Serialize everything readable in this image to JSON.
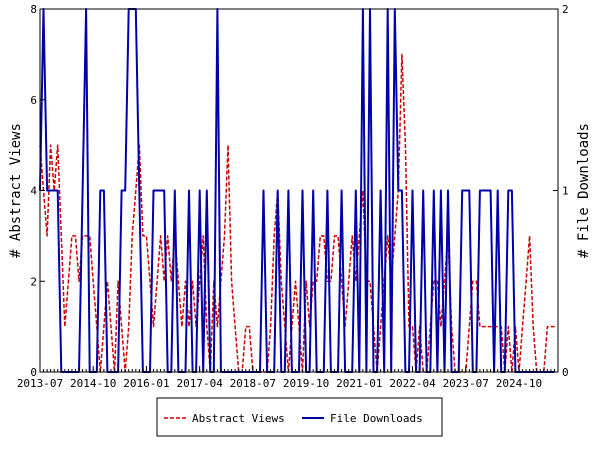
{
  "chart_data": {
    "type": "line",
    "ylabel_left": "# Abstract Views",
    "ylabel_right": "# File Downloads",
    "ylim_left": [
      0,
      8
    ],
    "ylim_right": [
      0,
      2
    ],
    "yticks_left": [
      "0",
      "2",
      "4",
      "6",
      "8"
    ],
    "yticks_right": [
      "0",
      "1",
      "2"
    ],
    "xlim": [
      "2013-07",
      "2025-09"
    ],
    "xtick_labels": [
      "2013-07",
      "2014-10",
      "2016-01",
      "2017-04",
      "2018-07",
      "2019-10",
      "2021-01",
      "2022-04",
      "2023-07",
      "2024-10"
    ],
    "legend_position": "bottom-center",
    "colors": {
      "abstract_views": "#cc0000",
      "file_downloads": "#0000aa"
    },
    "series": [
      {
        "name": "Abstract Views",
        "axis": "left",
        "style": "dashed",
        "points": [
          [
            "2013-07",
            5
          ],
          [
            "2013-08",
            4
          ],
          [
            "2013-09",
            3
          ],
          [
            "2013-10",
            5
          ],
          [
            "2013-11",
            4
          ],
          [
            "2013-12",
            5
          ],
          [
            "2014-01",
            3
          ],
          [
            "2014-02",
            1
          ],
          [
            "2014-03",
            2
          ],
          [
            "2014-04",
            3
          ],
          [
            "2014-05",
            3
          ],
          [
            "2014-06",
            2
          ],
          [
            "2014-07",
            3
          ],
          [
            "2014-08",
            3
          ],
          [
            "2014-09",
            3
          ],
          [
            "2014-10",
            2
          ],
          [
            "2014-11",
            1
          ],
          [
            "2014-12",
            0
          ],
          [
            "2015-01",
            1
          ],
          [
            "2015-02",
            2
          ],
          [
            "2015-03",
            1
          ],
          [
            "2015-04",
            0
          ],
          [
            "2015-05",
            2
          ],
          [
            "2015-06",
            1
          ],
          [
            "2015-07",
            0
          ],
          [
            "2015-08",
            1
          ],
          [
            "2015-09",
            3
          ],
          [
            "2015-10",
            4
          ],
          [
            "2015-11",
            5
          ],
          [
            "2015-12",
            3
          ],
          [
            "2016-01",
            3
          ],
          [
            "2016-02",
            2
          ],
          [
            "2016-03",
            1
          ],
          [
            "2016-04",
            2
          ],
          [
            "2016-05",
            3
          ],
          [
            "2016-06",
            2
          ],
          [
            "2016-07",
            3
          ],
          [
            "2016-08",
            2
          ],
          [
            "2016-09",
            3
          ],
          [
            "2016-10",
            2
          ],
          [
            "2016-11",
            1
          ],
          [
            "2016-12",
            2
          ],
          [
            "2017-01",
            1
          ],
          [
            "2017-02",
            2
          ],
          [
            "2017-03",
            1
          ],
          [
            "2017-04",
            2
          ],
          [
            "2017-05",
            3
          ],
          [
            "2017-06",
            1
          ],
          [
            "2017-07",
            0
          ],
          [
            "2017-08",
            2
          ],
          [
            "2017-09",
            1
          ],
          [
            "2017-10",
            2
          ],
          [
            "2017-11",
            3
          ],
          [
            "2017-12",
            5
          ],
          [
            "2018-01",
            2
          ],
          [
            "2018-02",
            1
          ],
          [
            "2018-03",
            0
          ],
          [
            "2018-04",
            0
          ],
          [
            "2018-05",
            1
          ],
          [
            "2018-06",
            1
          ],
          [
            "2018-07",
            0
          ],
          [
            "2018-08",
            0
          ],
          [
            "2018-09",
            0
          ],
          [
            "2018-10",
            0
          ],
          [
            "2018-11",
            0
          ],
          [
            "2018-12",
            1
          ],
          [
            "2019-01",
            3
          ],
          [
            "2019-02",
            4
          ],
          [
            "2019-03",
            2
          ],
          [
            "2019-04",
            1
          ],
          [
            "2019-05",
            0
          ],
          [
            "2019-06",
            1
          ],
          [
            "2019-07",
            2
          ],
          [
            "2019-08",
            1
          ],
          [
            "2019-09",
            0
          ],
          [
            "2019-10",
            2
          ],
          [
            "2019-11",
            1
          ],
          [
            "2019-12",
            2
          ],
          [
            "2020-01",
            2
          ],
          [
            "2020-02",
            3
          ],
          [
            "2020-03",
            3
          ],
          [
            "2020-04",
            2
          ],
          [
            "2020-05",
            2
          ],
          [
            "2020-06",
            3
          ],
          [
            "2020-07",
            3
          ],
          [
            "2020-08",
            2
          ],
          [
            "2020-09",
            1
          ],
          [
            "2020-10",
            2
          ],
          [
            "2020-11",
            3
          ],
          [
            "2020-12",
            2
          ],
          [
            "2021-01",
            3
          ],
          [
            "2021-02",
            4
          ],
          [
            "2021-03",
            2
          ],
          [
            "2021-04",
            2
          ],
          [
            "2021-05",
            1
          ],
          [
            "2021-06",
            0
          ],
          [
            "2021-07",
            1
          ],
          [
            "2021-08",
            2
          ],
          [
            "2021-09",
            3
          ],
          [
            "2021-10",
            2
          ],
          [
            "2021-11",
            3
          ],
          [
            "2021-12",
            4
          ],
          [
            "2022-01",
            7
          ],
          [
            "2022-02",
            5
          ],
          [
            "2022-03",
            1
          ],
          [
            "2022-04",
            1
          ],
          [
            "2022-05",
            0
          ],
          [
            "2022-06",
            1
          ],
          [
            "2022-07",
            0
          ],
          [
            "2022-08",
            0
          ],
          [
            "2022-09",
            1
          ],
          [
            "2022-10",
            2
          ],
          [
            "2022-11",
            2
          ],
          [
            "2022-12",
            1
          ],
          [
            "2023-01",
            2
          ],
          [
            "2023-02",
            3
          ],
          [
            "2023-03",
            1
          ],
          [
            "2023-04",
            0
          ],
          [
            "2023-05",
            0
          ],
          [
            "2023-06",
            0
          ],
          [
            "2023-07",
            0
          ],
          [
            "2023-08",
            1
          ],
          [
            "2023-09",
            2
          ],
          [
            "2023-10",
            2
          ],
          [
            "2023-11",
            1
          ],
          [
            "2023-12",
            1
          ],
          [
            "2024-01",
            1
          ],
          [
            "2024-02",
            1
          ],
          [
            "2024-03",
            1
          ],
          [
            "2024-04",
            1
          ],
          [
            "2024-05",
            1
          ],
          [
            "2024-06",
            0
          ],
          [
            "2024-07",
            1
          ],
          [
            "2024-08",
            0
          ],
          [
            "2024-09",
            1
          ],
          [
            "2024-10",
            0
          ],
          [
            "2024-11",
            1
          ],
          [
            "2024-12",
            2
          ],
          [
            "2025-01",
            3
          ],
          [
            "2025-02",
            1
          ],
          [
            "2025-03",
            0
          ],
          [
            "2025-04",
            0
          ],
          [
            "2025-05",
            0
          ],
          [
            "2025-06",
            1
          ],
          [
            "2025-07",
            1
          ],
          [
            "2025-08",
            1
          ]
        ]
      },
      {
        "name": "File Downloads",
        "axis": "right",
        "style": "solid",
        "points": [
          [
            "2013-07",
            1
          ],
          [
            "2013-08",
            2
          ],
          [
            "2013-09",
            1
          ],
          [
            "2013-10",
            1
          ],
          [
            "2013-11",
            1
          ],
          [
            "2013-12",
            1
          ],
          [
            "2014-01",
            0
          ],
          [
            "2014-02",
            0
          ],
          [
            "2014-03",
            0
          ],
          [
            "2014-04",
            0
          ],
          [
            "2014-05",
            0
          ],
          [
            "2014-06",
            0
          ],
          [
            "2014-07",
            1
          ],
          [
            "2014-08",
            2
          ],
          [
            "2014-09",
            0
          ],
          [
            "2014-10",
            0
          ],
          [
            "2014-11",
            0
          ],
          [
            "2014-12",
            1
          ],
          [
            "2015-01",
            1
          ],
          [
            "2015-02",
            0
          ],
          [
            "2015-03",
            0
          ],
          [
            "2015-04",
            0
          ],
          [
            "2015-05",
            0
          ],
          [
            "2015-06",
            1
          ],
          [
            "2015-07",
            1
          ],
          [
            "2015-08",
            2
          ],
          [
            "2015-09",
            2
          ],
          [
            "2015-10",
            2
          ],
          [
            "2015-11",
            1
          ],
          [
            "2015-12",
            0
          ],
          [
            "2016-01",
            0
          ],
          [
            "2016-02",
            0
          ],
          [
            "2016-03",
            1
          ],
          [
            "2016-04",
            1
          ],
          [
            "2016-05",
            1
          ],
          [
            "2016-06",
            1
          ],
          [
            "2016-07",
            0
          ],
          [
            "2016-08",
            0
          ],
          [
            "2016-09",
            1
          ],
          [
            "2016-10",
            0
          ],
          [
            "2016-11",
            0
          ],
          [
            "2016-12",
            0
          ],
          [
            "2017-01",
            1
          ],
          [
            "2017-02",
            0
          ],
          [
            "2017-03",
            0
          ],
          [
            "2017-04",
            1
          ],
          [
            "2017-05",
            0
          ],
          [
            "2017-06",
            1
          ],
          [
            "2017-07",
            0
          ],
          [
            "2017-08",
            0
          ],
          [
            "2017-09",
            2
          ],
          [
            "2017-10",
            0
          ],
          [
            "2017-11",
            0
          ],
          [
            "2017-12",
            0
          ],
          [
            "2018-01",
            0
          ],
          [
            "2018-02",
            0
          ],
          [
            "2018-03",
            0
          ],
          [
            "2018-04",
            0
          ],
          [
            "2018-05",
            0
          ],
          [
            "2018-06",
            0
          ],
          [
            "2018-07",
            0
          ],
          [
            "2018-08",
            0
          ],
          [
            "2018-09",
            0
          ],
          [
            "2018-10",
            1
          ],
          [
            "2018-11",
            0
          ],
          [
            "2018-12",
            0
          ],
          [
            "2019-01",
            0
          ],
          [
            "2019-02",
            1
          ],
          [
            "2019-03",
            0
          ],
          [
            "2019-04",
            0
          ],
          [
            "2019-05",
            1
          ],
          [
            "2019-06",
            0
          ],
          [
            "2019-07",
            0
          ],
          [
            "2019-08",
            0
          ],
          [
            "2019-09",
            1
          ],
          [
            "2019-10",
            0
          ],
          [
            "2019-11",
            0
          ],
          [
            "2019-12",
            1
          ],
          [
            "2020-01",
            0
          ],
          [
            "2020-02",
            0
          ],
          [
            "2020-03",
            0
          ],
          [
            "2020-04",
            1
          ],
          [
            "2020-05",
            0
          ],
          [
            "2020-06",
            0
          ],
          [
            "2020-07",
            0
          ],
          [
            "2020-08",
            1
          ],
          [
            "2020-09",
            0
          ],
          [
            "2020-10",
            0
          ],
          [
            "2020-11",
            0
          ],
          [
            "2020-12",
            1
          ],
          [
            "2021-01",
            0
          ],
          [
            "2021-02",
            2
          ],
          [
            "2021-03",
            0
          ],
          [
            "2021-04",
            2
          ],
          [
            "2021-05",
            0
          ],
          [
            "2021-06",
            0
          ],
          [
            "2021-07",
            1
          ],
          [
            "2021-08",
            0
          ],
          [
            "2021-09",
            2
          ],
          [
            "2021-10",
            0
          ],
          [
            "2021-11",
            2
          ],
          [
            "2021-12",
            1
          ],
          [
            "2022-01",
            1
          ],
          [
            "2022-02",
            0
          ],
          [
            "2022-03",
            0
          ],
          [
            "2022-04",
            1
          ],
          [
            "2022-05",
            0
          ],
          [
            "2022-06",
            0
          ],
          [
            "2022-07",
            1
          ],
          [
            "2022-08",
            0
          ],
          [
            "2022-09",
            0
          ],
          [
            "2022-10",
            1
          ],
          [
            "2022-11",
            0
          ],
          [
            "2022-12",
            1
          ],
          [
            "2023-01",
            0
          ],
          [
            "2023-02",
            1
          ],
          [
            "2023-03",
            0
          ],
          [
            "2023-04",
            0
          ],
          [
            "2023-05",
            0
          ],
          [
            "2023-06",
            1
          ],
          [
            "2023-07",
            1
          ],
          [
            "2023-08",
            1
          ],
          [
            "2023-09",
            0
          ],
          [
            "2023-10",
            0
          ],
          [
            "2023-11",
            1
          ],
          [
            "2023-12",
            1
          ],
          [
            "2024-01",
            1
          ],
          [
            "2024-02",
            1
          ],
          [
            "2024-03",
            0
          ],
          [
            "2024-04",
            1
          ],
          [
            "2024-05",
            0
          ],
          [
            "2024-06",
            0
          ],
          [
            "2024-07",
            1
          ],
          [
            "2024-08",
            1
          ],
          [
            "2024-09",
            0
          ],
          [
            "2024-10",
            0
          ],
          [
            "2024-11",
            0
          ],
          [
            "2024-12",
            0
          ],
          [
            "2025-01",
            0
          ],
          [
            "2025-02",
            0
          ],
          [
            "2025-03",
            0
          ],
          [
            "2025-04",
            0
          ],
          [
            "2025-05",
            0
          ],
          [
            "2025-06",
            0
          ],
          [
            "2025-07",
            0
          ],
          [
            "2025-08",
            0
          ]
        ]
      }
    ]
  }
}
